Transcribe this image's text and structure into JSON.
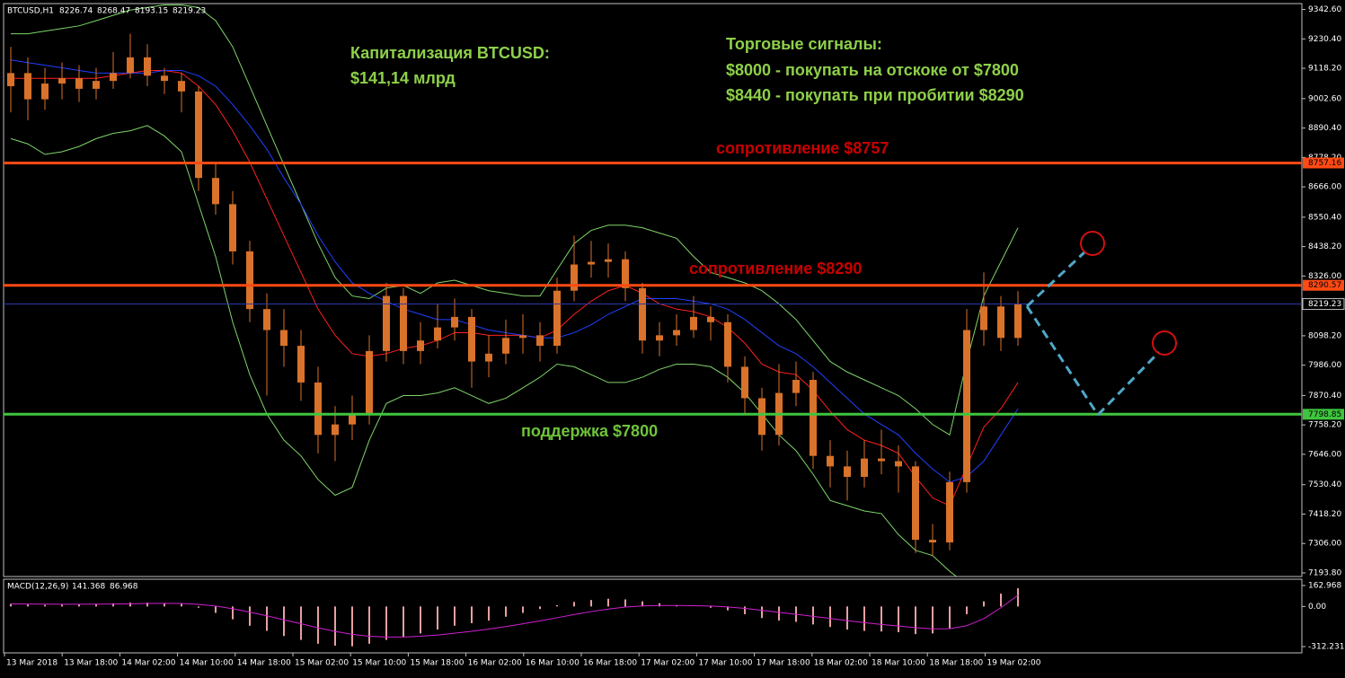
{
  "chart_data": {
    "type": "candlestick",
    "symbol": "BTCUSD,H1",
    "header_values": [
      8226.74,
      8268.47,
      8193.15,
      8219.23
    ],
    "candle_color": "#d9722a",
    "open": [
      9050,
      9100,
      9000,
      9060,
      9080,
      9040,
      9070,
      9100,
      9160,
      9090,
      9070,
      9030,
      8700,
      8600,
      8420,
      8200,
      8120,
      8060,
      7920,
      7720,
      7760,
      7800,
      8040,
      8250,
      8040,
      8080,
      8130,
      8170,
      8000,
      8030,
      8090,
      8100,
      8060,
      8270,
      8370,
      8380,
      8390,
      8280,
      8080,
      8100,
      8120,
      8170,
      8150,
      7980,
      7860,
      7720,
      7880,
      7930,
      7640,
      7600,
      7560,
      7630,
      7620,
      7600,
      7320,
      7310,
      7540,
      8120,
      8210,
      8090
    ],
    "high": [
      9200,
      9160,
      9120,
      9140,
      9130,
      9120,
      9180,
      9250,
      9210,
      9120,
      9100,
      9050,
      8760,
      8650,
      8460,
      8260,
      8200,
      8120,
      7980,
      7830,
      7870,
      8100,
      8300,
      8280,
      8150,
      8220,
      8240,
      8200,
      8100,
      8160,
      8180,
      8150,
      8320,
      8480,
      8460,
      8450,
      8420,
      8300,
      8150,
      8180,
      8250,
      8210,
      8180,
      8020,
      7900,
      7990,
      8000,
      7960,
      7700,
      7660,
      7700,
      7740,
      7680,
      7620,
      7380,
      7580,
      8200,
      8340,
      8250,
      8268.47
    ],
    "low": [
      8950,
      8920,
      8960,
      9000,
      8990,
      9000,
      9040,
      9080,
      9050,
      9020,
      8950,
      8650,
      8560,
      8370,
      8150,
      7870,
      7980,
      7850,
      7650,
      7620,
      7700,
      7760,
      8000,
      7990,
      7990,
      8050,
      8080,
      7900,
      7940,
      7990,
      8030,
      8000,
      8030,
      8230,
      8320,
      8320,
      8230,
      8030,
      8020,
      8060,
      8090,
      8080,
      7920,
      7800,
      7660,
      7680,
      7830,
      7590,
      7520,
      7470,
      7520,
      7570,
      7500,
      7270,
      7260,
      7280,
      7500,
      8060,
      8040,
      8060
    ],
    "close": [
      9100,
      9000,
      9060,
      9080,
      9040,
      9070,
      9100,
      9160,
      9090,
      9070,
      9030,
      8700,
      8600,
      8420,
      8200,
      8120,
      8060,
      7920,
      7720,
      7760,
      7800,
      8040,
      8250,
      8040,
      8080,
      8130,
      8170,
      8000,
      8030,
      8090,
      8100,
      8060,
      8270,
      8370,
      8380,
      8390,
      8280,
      8080,
      8100,
      8120,
      8170,
      8150,
      7980,
      7860,
      7720,
      7880,
      7930,
      7640,
      7600,
      7560,
      7630,
      7620,
      7600,
      7320,
      7310,
      7540,
      8120,
      8210,
      8090,
      8219.23
    ],
    "series": [
      {
        "color": "#7fd46a",
        "values": [
          9250,
          9250,
          9260,
          9270,
          9280,
          9300,
          9320,
          9340,
          9350,
          9360,
          9360,
          9350,
          9300,
          9200,
          9050,
          8900,
          8750,
          8600,
          8450,
          8320,
          8250,
          8240,
          8280,
          8290,
          8260,
          8300,
          8310,
          8290,
          8270,
          8260,
          8250,
          8250,
          8350,
          8450,
          8500,
          8520,
          8520,
          8510,
          8490,
          8470,
          8400,
          8340,
          8320,
          8300,
          8270,
          8220,
          8160,
          8080,
          8000,
          7960,
          7930,
          7900,
          7870,
          7820,
          7760,
          7720,
          8000,
          8250,
          8380,
          8510
        ]
      },
      {
        "color": "#7fd46a",
        "values": [
          8850,
          8830,
          8790,
          8800,
          8820,
          8850,
          8870,
          8880,
          8900,
          8860,
          8800,
          8600,
          8400,
          8150,
          7950,
          7800,
          7700,
          7640,
          7550,
          7490,
          7520,
          7700,
          7840,
          7870,
          7870,
          7880,
          7900,
          7870,
          7840,
          7860,
          7900,
          7940,
          7990,
          7980,
          7950,
          7920,
          7920,
          7940,
          7970,
          7990,
          7990,
          7980,
          7940,
          7880,
          7800,
          7720,
          7660,
          7570,
          7470,
          7450,
          7430,
          7420,
          7340,
          7280,
          7260,
          7200,
          7150,
          null,
          null,
          null
        ]
      },
      {
        "color": "#ff2020",
        "values": [
          9080,
          9080,
          9080,
          9080,
          9080,
          9080,
          9090,
          9100,
          9110,
          9110,
          9100,
          9050,
          8980,
          8880,
          8760,
          8620,
          8480,
          8340,
          8200,
          8100,
          8030,
          8020,
          8030,
          8050,
          8060,
          8080,
          8110,
          8110,
          8100,
          8100,
          8100,
          8090,
          8120,
          8180,
          8230,
          8270,
          8290,
          8260,
          8220,
          8200,
          8190,
          8170,
          8130,
          8070,
          7990,
          7960,
          7950,
          7890,
          7810,
          7740,
          7700,
          7680,
          7650,
          7560,
          7480,
          7450,
          7600,
          7750,
          7820,
          7920
        ]
      },
      {
        "color": "#2040ff",
        "values": [
          9150,
          9140,
          9130,
          9120,
          9110,
          9100,
          9100,
          9100,
          9100,
          9110,
          9110,
          9090,
          9050,
          8980,
          8900,
          8810,
          8700,
          8600,
          8480,
          8380,
          8300,
          8260,
          8230,
          8200,
          8180,
          8160,
          8160,
          8140,
          8120,
          8110,
          8100,
          8090,
          8090,
          8110,
          8140,
          8180,
          8210,
          8240,
          8240,
          8240,
          8230,
          8220,
          8200,
          8160,
          8110,
          8060,
          8030,
          7980,
          7920,
          7860,
          7800,
          7760,
          7720,
          7650,
          7590,
          7540,
          7560,
          7620,
          7720,
          7820
        ]
      }
    ],
    "ylim": [
      7180,
      9365
    ],
    "yticks": [
      {
        "value": 9342.6,
        "label": "9342.60"
      },
      {
        "value": 9230.4,
        "label": "9230.40"
      },
      {
        "value": 9118.2,
        "label": "9118.20"
      },
      {
        "value": 9002.6,
        "label": "9002.60"
      },
      {
        "value": 8890.4,
        "label": "8890.40"
      },
      {
        "value": 8778.2,
        "label": "8778.20"
      },
      {
        "value": 8666,
        "label": "8666.00"
      },
      {
        "value": 8550.4,
        "label": "8550.40"
      },
      {
        "value": 8438.2,
        "label": "8438.20"
      },
      {
        "value": 8326,
        "label": "8326.00"
      },
      {
        "value": 8098.2,
        "label": "8098.20"
      },
      {
        "value": 7986,
        "label": "7986.00"
      },
      {
        "value": 7870.4,
        "label": "7870.40"
      },
      {
        "value": 7758.2,
        "label": "7758.20"
      },
      {
        "value": 7646,
        "label": "7646.00"
      },
      {
        "value": 7530.4,
        "label": "7530.40"
      },
      {
        "value": 7418.2,
        "label": "7418.20"
      },
      {
        "value": 7306,
        "label": "7306.00"
      },
      {
        "value": 7193.8,
        "label": "7193.80"
      }
    ],
    "levels": [
      {
        "value": 8757.16,
        "color": "#ff4a14"
      },
      {
        "value": 8290.57,
        "color": "#ff4a14"
      },
      {
        "value": 7798.85,
        "color": "#3fc43f"
      },
      {
        "value": 8219.23,
        "color": "#2a3aa8"
      }
    ],
    "x_labels": [
      "13 Mar 2018",
      "13 Mar 18:00",
      "14 Mar 02:00",
      "14 Mar 10:00",
      "14 Mar 18:00",
      "15 Mar 02:00",
      "15 Mar 10:00",
      "15 Mar 18:00",
      "16 Mar 02:00",
      "16 Mar 10:00",
      "16 Mar 18:00",
      "17 Mar 02:00",
      "17 Mar 10:00",
      "17 Mar 18:00",
      "18 Mar 02:00",
      "18 Mar 10:00",
      "18 Mar 18:00",
      "19 Mar 02:00"
    ],
    "annotations": [
      {
        "text": "Капитализация BTCUSD:",
        "color": "#8ed04a"
      },
      {
        "text": "$141,14 млрд",
        "color": "#8ed04a"
      },
      {
        "text": "Торговые сигналы:",
        "color": "#8ed04a"
      },
      {
        "text": "$8000 - покупать на отскоке от $7800",
        "color": "#8ed04a"
      },
      {
        "text": "$8440 - покупать при пробитии $8290",
        "color": "#8ed04a"
      },
      {
        "text": "сопротивление $8757",
        "color": "#c80000"
      },
      {
        "text": "сопротивление $8290",
        "color": "#c80000"
      },
      {
        "text": "поддержка $7800",
        "color": "#6fc43a"
      }
    ],
    "macd": {
      "title": "MACD(12,26,9)",
      "header_values": [
        141.368,
        86.968
      ],
      "hist_color": "#e8a0a0",
      "signal_color": "#d020d0",
      "histogram": [
        20,
        15,
        12,
        15,
        18,
        20,
        25,
        30,
        30,
        25,
        20,
        -10,
        -50,
        -100,
        -150,
        -190,
        -230,
        -260,
        -290,
        -305,
        -310,
        -290,
        -260,
        -240,
        -210,
        -180,
        -150,
        -130,
        -110,
        -80,
        -50,
        -20,
        10,
        35,
        50,
        60,
        55,
        40,
        25,
        10,
        0,
        -10,
        -30,
        -60,
        -90,
        -110,
        -120,
        -140,
        -160,
        -180,
        -190,
        -195,
        -200,
        -215,
        -210,
        -170,
        -60,
        40,
        100,
        141.368
      ],
      "signal": [
        20,
        19,
        18,
        17,
        17,
        18,
        19,
        21,
        23,
        24,
        23,
        16,
        3,
        -18,
        -44,
        -73,
        -104,
        -135,
        -166,
        -194,
        -217,
        -232,
        -238,
        -238,
        -232,
        -222,
        -208,
        -193,
        -176,
        -157,
        -135,
        -112,
        -88,
        -63,
        -40,
        -20,
        -5,
        4,
        8,
        8,
        6,
        3,
        -4,
        -15,
        -30,
        -46,
        -61,
        -77,
        -93,
        -110,
        -126,
        -140,
        -152,
        -165,
        -174,
        -173,
        -150,
        -95,
        -10,
        86.968
      ],
      "ylim": [
        -361,
        212
      ],
      "yticks": [
        162.968,
        {
          "value": 0,
          "label": "0.00"
        },
        -312.231
      ]
    }
  }
}
